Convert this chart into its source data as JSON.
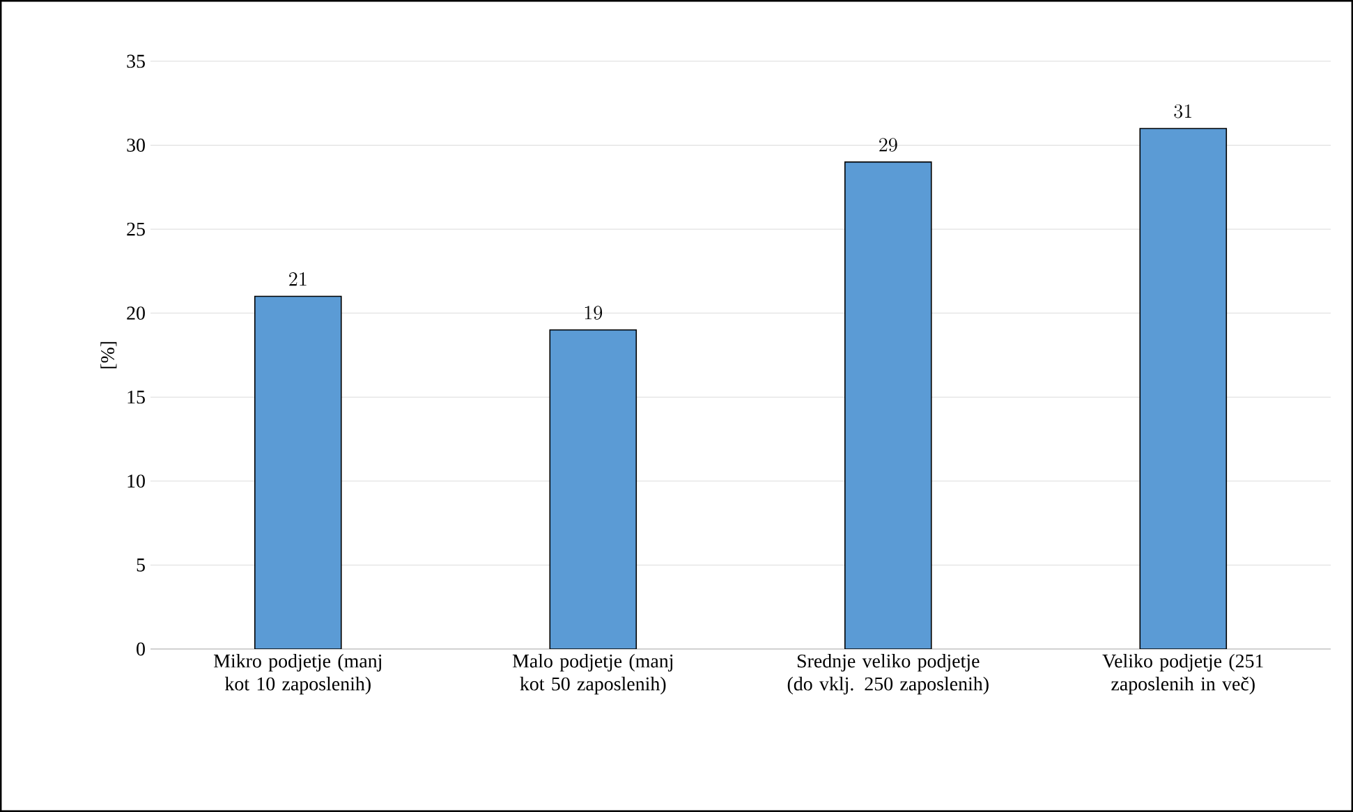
{
  "chart_data": {
    "type": "bar",
    "ylabel": "[%]",
    "categories": [
      "Mikro podjetje (manj kot 10 zaposlenih)",
      "Malo podjetje (manj kot 50 zaposlenih)",
      "Srednje veliko podjetje (do vklj. 250 zaposlenih)",
      "Veliko podjetje (251 zaposlenih in več)"
    ],
    "values": [
      21,
      19,
      29,
      31
    ],
    "color": "#5b9bd5",
    "ylim": [
      0,
      35
    ],
    "yticks": [
      0,
      5,
      10,
      15,
      20,
      25,
      30,
      35
    ],
    "grid": "y",
    "data_labels": true
  }
}
